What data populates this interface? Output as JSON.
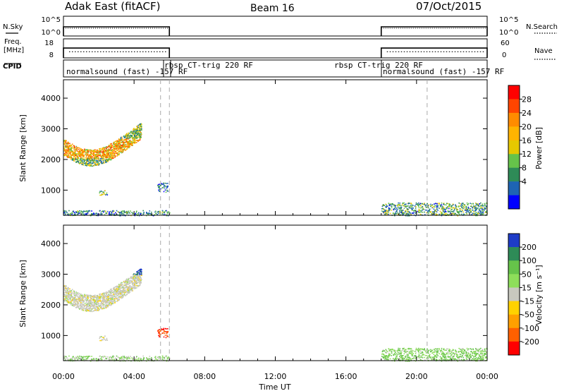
{
  "header": {
    "station": "Adak East (fitACF)",
    "beam": "Beam 16",
    "date": "07/Oct/2015"
  },
  "panels": {
    "nsky": {
      "left_label": "N.Sky",
      "left_ticks": [
        "10^5",
        "10^0"
      ],
      "right_label": "N.Search",
      "right_ticks": [
        "10^5",
        "10^0"
      ]
    },
    "freq": {
      "left_label_1": "Freq.",
      "left_label_2": "[MHz]",
      "left_ticks": [
        "18",
        "8"
      ],
      "right_label": "Nave",
      "right_ticks": [
        "60",
        "0"
      ]
    },
    "cpid": {
      "label": "CPID",
      "segments": [
        {
          "text": "normalsound (fast) -157 RF"
        },
        {
          "text": "rbsp CT-trig 220 RF"
        },
        {
          "text": "rbsp CT-trig 220 RF"
        },
        {
          "text": "normalsound (fast) -157 RF"
        }
      ]
    }
  },
  "axes": {
    "xlabel": "Time UT",
    "x_ticks": [
      "00:00",
      "04:00",
      "08:00",
      "12:00",
      "16:00",
      "20:00",
      "00:00"
    ],
    "ylabel": "Slant Range [km]",
    "y_ticks": [
      "1000",
      "2000",
      "3000",
      "4000"
    ]
  },
  "power_colorbar": {
    "label": "Power [dB]",
    "ticks": [
      "28",
      "24",
      "20",
      "16",
      "12",
      "8",
      "4"
    ],
    "colors": [
      "#ff0000",
      "#ff4500",
      "#ff8c00",
      "#ffb400",
      "#e6c800",
      "#66c34a",
      "#2e8b57",
      "#1e64b4",
      "#0000ff"
    ]
  },
  "velocity_colorbar": {
    "label": "Velocity [m s⁻¹]",
    "ticks": [
      "200",
      "100",
      "50",
      "15",
      "-15",
      "-50",
      "-100",
      "-200"
    ],
    "colors": [
      "#1e3cc8",
      "#2e8b57",
      "#66c34a",
      "#8ede5a",
      "#c8c8be",
      "#ffd200",
      "#ffa000",
      "#ff6000",
      "#ff0000"
    ]
  },
  "chart_data": {
    "type": "heatmap",
    "title": "Adak East (fitACF)",
    "xlabel": "Time UT",
    "ylabel": "Slant Range [km]",
    "xlim_hours": [
      0,
      24
    ],
    "ylim_km": [
      180,
      4600
    ],
    "grid": false,
    "scatter_regions": [
      {
        "t_start": 0.0,
        "t_end": 4.4,
        "range_low": 1900,
        "range_high": 3050,
        "power_db": 18,
        "velocity": 0
      },
      {
        "t_start": 2.0,
        "t_end": 2.5,
        "range_low": 850,
        "range_high": 1000,
        "power_db": 10,
        "velocity": 0
      },
      {
        "t_start": 5.3,
        "t_end": 5.9,
        "range_low": 950,
        "range_high": 1250,
        "power_db": 6,
        "velocity": -150
      },
      {
        "t_start": 0.0,
        "t_end": 6.0,
        "range_low": 180,
        "range_high": 350,
        "power_db": 8,
        "velocity": 20
      },
      {
        "t_start": 18.0,
        "t_end": 24.0,
        "range_low": 180,
        "range_high": 600,
        "power_db": 10,
        "velocity": 30
      }
    ],
    "operating_intervals_hours": [
      [
        0,
        6.0
      ],
      [
        18.0,
        24.0
      ]
    ],
    "mode_change_marks_hours": [
      5.5,
      6.0,
      20.6
    ],
    "nsky_level": 3,
    "freq_mhz": 13.5,
    "nave_level": 20
  }
}
